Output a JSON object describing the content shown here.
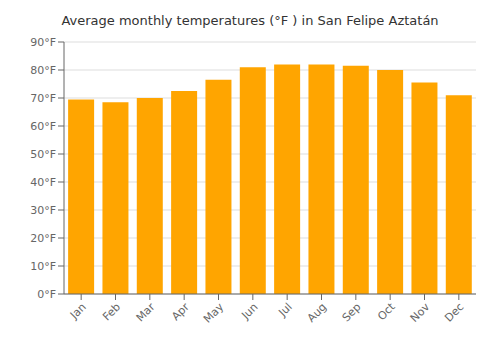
{
  "chart_data": {
    "type": "bar",
    "title": "Average monthly temperatures (°F ) in San Felipe Aztatán",
    "categories": [
      "Jan",
      "Feb",
      "Mar",
      "Apr",
      "May",
      "Jun",
      "Jul",
      "Aug",
      "Sep",
      "Oct",
      "Nov",
      "Dec"
    ],
    "values": [
      69.5,
      68.5,
      70.0,
      72.5,
      76.5,
      81.0,
      82.0,
      82.0,
      81.5,
      80.0,
      75.5,
      71.0
    ],
    "color": "#FFA500",
    "ylim": [
      0,
      90
    ],
    "yticks": [
      {
        "value": 0,
        "label": "0°F"
      },
      {
        "value": 10,
        "label": "10°F"
      },
      {
        "value": 20,
        "label": "20°F"
      },
      {
        "value": 30,
        "label": "30°F"
      },
      {
        "value": 40,
        "label": "40°F"
      },
      {
        "value": 50,
        "label": "50°F"
      },
      {
        "value": 60,
        "label": "60°F"
      },
      {
        "value": 70,
        "label": "70°F"
      },
      {
        "value": 80,
        "label": "80°F"
      },
      {
        "value": 90,
        "label": "90°F"
      }
    ],
    "grid": true
  }
}
